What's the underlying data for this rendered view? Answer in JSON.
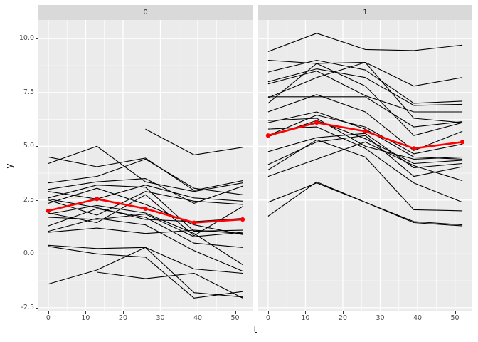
{
  "chart_data": {
    "type": "line",
    "title": "",
    "xlabel": "t",
    "ylabel": "y",
    "x": [
      0,
      13,
      26,
      39,
      52
    ],
    "x_ticks": [
      0,
      10,
      20,
      30,
      40,
      50
    ],
    "y_ticks": [
      -2.5,
      0.0,
      2.5,
      5.0,
      7.5,
      10.0
    ],
    "y_tick_labels": [
      "-2.5",
      "0.0",
      "2.5",
      "5.0",
      "7.5",
      "10.0"
    ],
    "x_minor_ticks": [
      5,
      15,
      25,
      35,
      45
    ],
    "y_minor_ticks": [
      -1.25,
      1.25,
      3.75,
      6.25,
      8.75
    ],
    "xlim": [
      -2.65,
      54.65
    ],
    "ylim": [
      -2.67,
      10.87
    ],
    "grid": true,
    "legend": false,
    "colors": {
      "panel_bg": "#EBEBEB",
      "strip_bg": "#D9D9D9",
      "grid": "#FFFFFF",
      "subject_line": "#000000",
      "mean_line": "#FF0000",
      "tick_text": "#4D4D4D",
      "tick_mark": "#333333",
      "axis_title": "#000000"
    },
    "facets": [
      {
        "label": "0",
        "mean": [
          2.0,
          2.55,
          2.1,
          1.45,
          1.6
        ],
        "series": [
          [
            4.5,
            4.05,
            4.45,
            2.95,
            3.4
          ],
          [
            4.2,
            5.0,
            3.35,
            2.9,
            3.3
          ],
          [
            3.3,
            3.6,
            4.4,
            3.05,
            2.75
          ],
          [
            3.0,
            3.35,
            3.5,
            2.35,
            3.15
          ],
          [
            2.9,
            2.55,
            3.2,
            2.6,
            2.45
          ],
          [
            2.6,
            3.2,
            3.1,
            1.05,
            1.1
          ],
          [
            2.5,
            1.8,
            2.9,
            2.45,
            2.3
          ],
          [
            2.35,
            3.05,
            2.3,
            1.35,
            0.9
          ],
          [
            1.85,
            2.25,
            1.9,
            0.95,
            -0.5
          ],
          [
            1.7,
            1.6,
            1.85,
            0.8,
            1.0
          ],
          [
            1.3,
            2.1,
            1.7,
            0.5,
            0.3
          ],
          [
            1.05,
            1.65,
            1.35,
            0.15,
            -0.8
          ],
          [
            1.0,
            1.2,
            0.95,
            1.1,
            0.95
          ],
          [
            0.4,
            0.25,
            0.3,
            -0.7,
            -0.9
          ],
          [
            -1.4,
            -0.75,
            0.3,
            -1.8,
            -2.0
          ],
          [
            2.55,
            2.15,
            1.6,
            1.5,
            1.65
          ],
          [
            null,
            null,
            5.8,
            4.6,
            4.95
          ],
          [
            null,
            -0.85,
            -1.15,
            -0.9,
            -2.05
          ],
          [
            0.35,
            0.0,
            -0.15,
            -2.05,
            -1.75
          ],
          [
            1.9,
            1.45,
            2.75,
            0.85,
            2.2
          ]
        ]
      },
      {
        "label": "1",
        "mean": [
          5.5,
          6.1,
          5.7,
          4.9,
          5.2
        ],
        "series": [
          [
            9.4,
            10.25,
            9.5,
            9.45,
            9.7
          ],
          [
            9.0,
            8.85,
            8.9,
            7.8,
            8.2
          ],
          [
            8.45,
            9.0,
            8.55,
            7.0,
            7.1
          ],
          [
            8.0,
            8.6,
            8.2,
            6.9,
            6.95
          ],
          [
            7.9,
            8.5,
            7.35,
            6.6,
            6.6
          ],
          [
            7.3,
            7.3,
            7.3,
            5.9,
            6.15
          ],
          [
            7.25,
            8.2,
            8.9,
            6.3,
            6.1
          ],
          [
            7.0,
            8.85,
            7.8,
            5.5,
            6.1
          ],
          [
            6.6,
            7.4,
            6.6,
            4.8,
            5.7
          ],
          [
            6.2,
            6.3,
            5.0,
            4.4,
            4.5
          ],
          [
            6.1,
            6.6,
            5.8,
            4.5,
            4.4
          ],
          [
            5.45,
            6.2,
            5.35,
            4.2,
            4.35
          ],
          [
            5.5,
            6.45,
            5.9,
            4.65,
            5.1
          ],
          [
            4.75,
            5.4,
            5.6,
            4.0,
            4.2
          ],
          [
            4.15,
            5.2,
            5.5,
            3.6,
            4.05
          ],
          [
            3.9,
            5.3,
            4.5,
            2.05,
            2.0
          ],
          [
            3.6,
            4.4,
            5.2,
            4.1,
            3.4
          ],
          [
            5.8,
            5.9,
            4.9,
            3.3,
            2.4
          ],
          [
            2.4,
            3.3,
            2.4,
            1.5,
            1.35
          ],
          [
            1.75,
            3.35,
            2.4,
            1.45,
            1.3
          ]
        ]
      }
    ]
  }
}
